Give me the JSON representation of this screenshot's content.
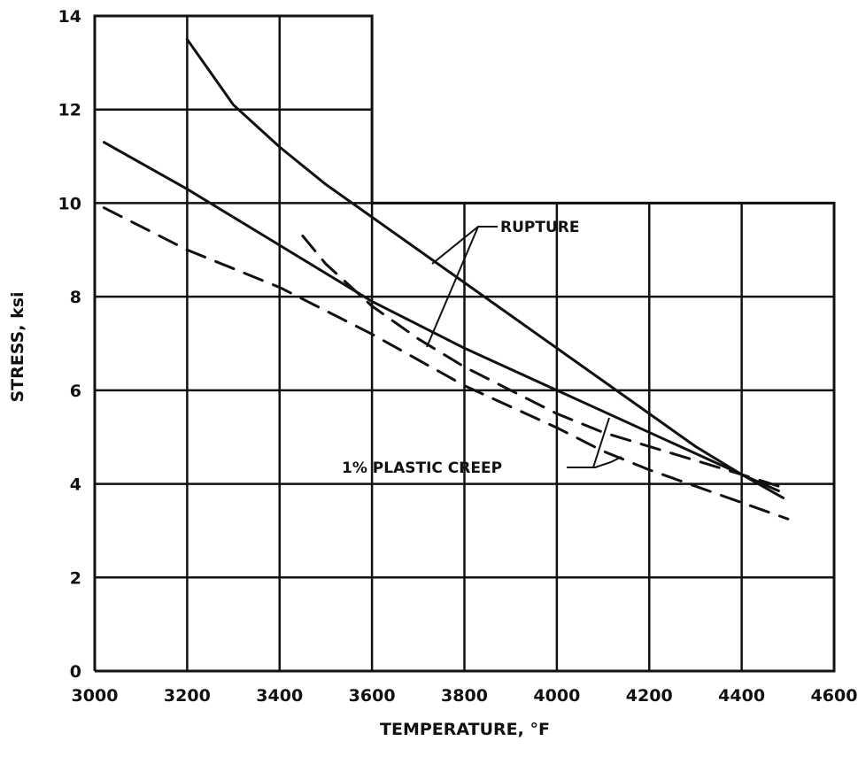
{
  "chart_data": {
    "type": "line",
    "title": "",
    "xlabel": "TEMPERATURE, °F",
    "ylabel": "STRESS, ksi",
    "xlim": [
      3000,
      4600
    ],
    "ylim": [
      0,
      14
    ],
    "xticks": [
      "3000",
      "3200",
      "3400",
      "3600",
      "3800",
      "4000",
      "4200",
      "4400",
      "4600"
    ],
    "yticks": [
      "0",
      "2",
      "4",
      "6",
      "8",
      "10",
      "12",
      "14"
    ],
    "grid": true,
    "annotations": [
      "RUPTURE",
      "1% PLASTIC CREEP"
    ],
    "series": [
      {
        "style": "solid",
        "x": [
          3200,
          3300,
          3400,
          3500,
          3600,
          3700,
          3800,
          3900,
          4000,
          4100,
          4200,
          4300,
          4400,
          4480
        ],
        "y": [
          13.5,
          12.1,
          11.2,
          10.4,
          9.7,
          9.0,
          8.3,
          7.6,
          6.9,
          6.2,
          5.5,
          4.8,
          4.2,
          3.85
        ]
      },
      {
        "style": "solid",
        "x": [
          3020,
          3200,
          3400,
          3600,
          3800,
          4000,
          4200,
          4400,
          4490
        ],
        "y": [
          11.3,
          10.3,
          9.1,
          7.9,
          6.9,
          6.0,
          5.1,
          4.2,
          3.7
        ]
      },
      {
        "style": "dashed",
        "x": [
          3450,
          3500,
          3600,
          3700,
          3800,
          3900,
          4000,
          4100,
          4200,
          4300,
          4400,
          4480
        ],
        "y": [
          9.3,
          8.7,
          7.8,
          7.1,
          6.5,
          6.0,
          5.5,
          5.1,
          4.8,
          4.5,
          4.2,
          3.95
        ]
      },
      {
        "style": "dashed",
        "x": [
          3020,
          3200,
          3400,
          3600,
          3800,
          4000,
          4100,
          4200,
          4300,
          4400,
          4500
        ],
        "y": [
          9.9,
          9.0,
          8.2,
          7.2,
          6.1,
          5.2,
          4.7,
          4.3,
          3.95,
          3.6,
          3.25
        ]
      }
    ]
  }
}
